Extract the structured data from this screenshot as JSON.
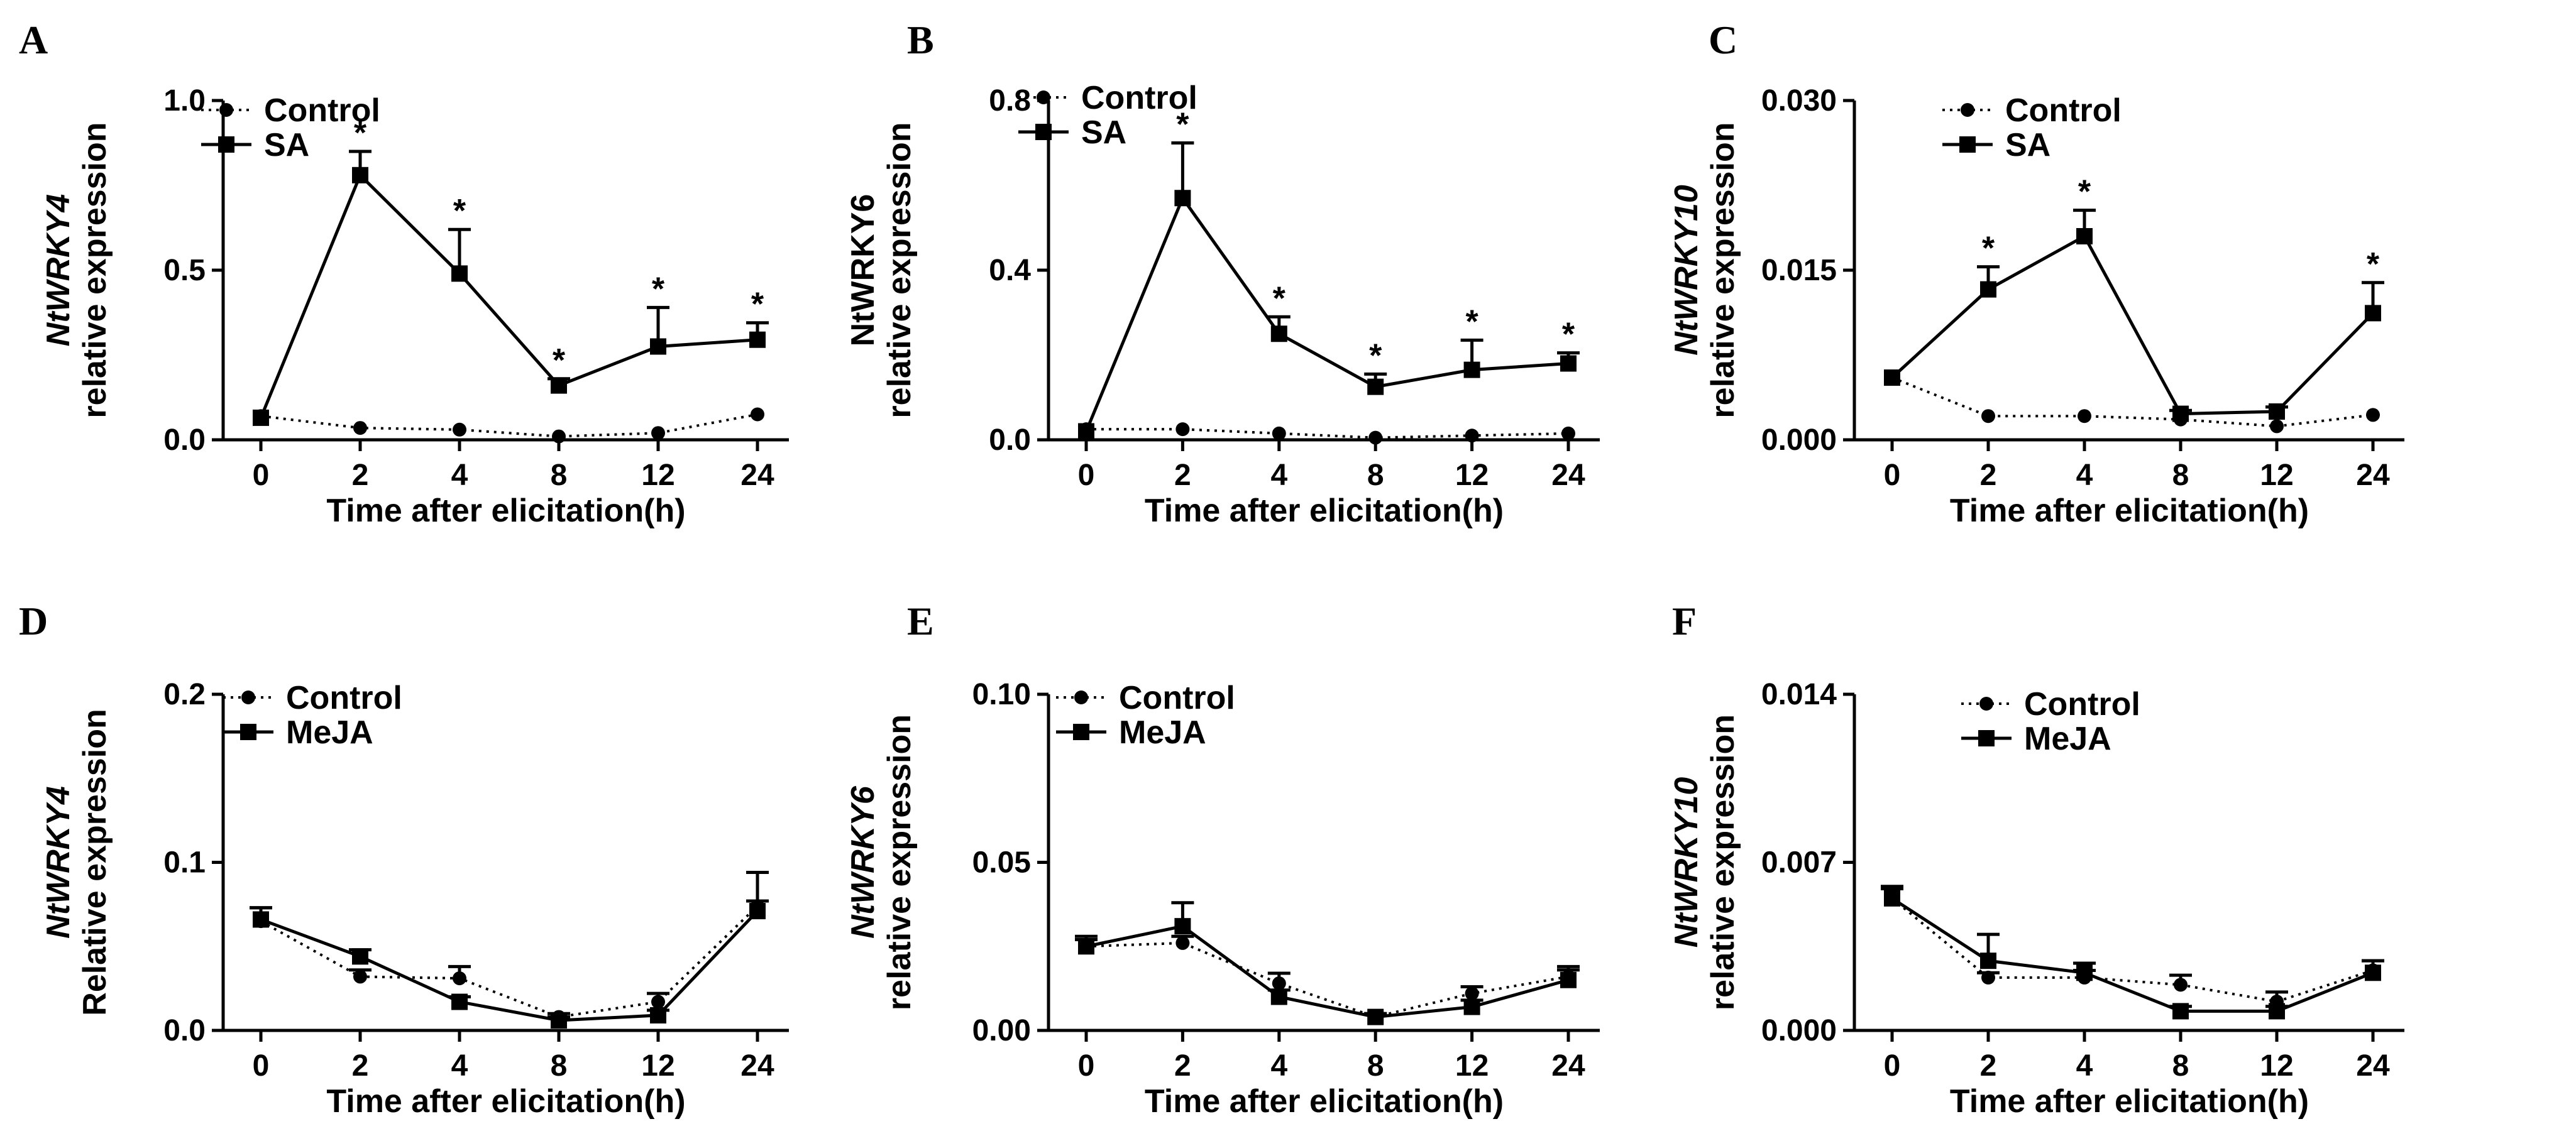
{
  "chart_data": [
    {
      "panel": "A",
      "type": "line",
      "title": "",
      "ylabel_gene": "NtWRKY4",
      "ylabel_gene_italic": true,
      "ylabel_text": "relative expression",
      "xlabel": "Time after elicitation(h)",
      "categories": [
        "0",
        "2",
        "4",
        "8",
        "12",
        "24"
      ],
      "ylim": [
        0,
        1.0
      ],
      "yticks": [
        "0.0",
        "0.5",
        "1.0"
      ],
      "ytick_values": [
        0,
        0.5,
        1.0
      ],
      "series": [
        {
          "name": "Control",
          "style": "dotted",
          "marker": "circle",
          "values": [
            0.07,
            0.035,
            0.03,
            0.01,
            0.02,
            0.075
          ],
          "errors": [
            0,
            0,
            0,
            0,
            0,
            0
          ]
        },
        {
          "name": "SA",
          "style": "solid",
          "marker": "square",
          "values": [
            0.065,
            0.78,
            0.49,
            0.16,
            0.275,
            0.295
          ],
          "errors": [
            0,
            0.07,
            0.13,
            0.02,
            0.115,
            0.05
          ]
        }
      ],
      "significance": [
        "",
        "*",
        "*",
        "*",
        "*",
        "*"
      ]
    },
    {
      "panel": "B",
      "type": "line",
      "title": "",
      "ylabel_gene": "NtWRKY6",
      "ylabel_gene_italic": false,
      "ylabel_text": "relative expression",
      "xlabel": "Time after elicitation(h)",
      "categories": [
        "0",
        "2",
        "4",
        "8",
        "12",
        "24"
      ],
      "ylim": [
        0,
        0.8
      ],
      "yticks": [
        "0.0",
        "0.4",
        "0.8"
      ],
      "ytick_values": [
        0,
        0.4,
        0.8
      ],
      "series": [
        {
          "name": "Control",
          "style": "dotted",
          "marker": "circle",
          "values": [
            0.025,
            0.025,
            0.015,
            0.005,
            0.01,
            0.015
          ],
          "errors": [
            0,
            0,
            0,
            0,
            0,
            0
          ]
        },
        {
          "name": "SA",
          "style": "solid",
          "marker": "square",
          "values": [
            0.02,
            0.57,
            0.25,
            0.125,
            0.165,
            0.18
          ],
          "errors": [
            0,
            0.13,
            0.04,
            0.03,
            0.07,
            0.025
          ]
        }
      ],
      "significance": [
        "",
        "*",
        "*",
        "*",
        "*",
        "*"
      ]
    },
    {
      "panel": "C",
      "type": "line",
      "title": "",
      "ylabel_gene": "NtWRKY10",
      "ylabel_gene_italic": true,
      "ylabel_text": "relative expression",
      "xlabel": "Time after elicitation(h)",
      "categories": [
        "0",
        "2",
        "4",
        "8",
        "12",
        "24"
      ],
      "ylim": [
        0,
        0.03
      ],
      "yticks": [
        "0.000",
        "0.015",
        "0.030"
      ],
      "ytick_values": [
        0,
        0.015,
        0.03
      ],
      "series": [
        {
          "name": "Control",
          "style": "dotted",
          "marker": "circle",
          "values": [
            0.0055,
            0.0021,
            0.0021,
            0.0018,
            0.0012,
            0.0022
          ],
          "errors": [
            0,
            0,
            0,
            0,
            0,
            0
          ]
        },
        {
          "name": "SA",
          "style": "solid",
          "marker": "square",
          "values": [
            0.0055,
            0.0133,
            0.018,
            0.0023,
            0.0025,
            0.0112
          ],
          "errors": [
            0,
            0.002,
            0.0023,
            0.0003,
            0.0004,
            0.0027
          ]
        }
      ],
      "significance": [
        "",
        "*",
        "*",
        "",
        "",
        "*"
      ]
    },
    {
      "panel": "D",
      "type": "line",
      "title": "",
      "ylabel_gene": "NtWRKY4",
      "ylabel_gene_italic": true,
      "ylabel_text": "Relative expression",
      "xlabel": "Time after elicitation(h)",
      "categories": [
        "0",
        "2",
        "4",
        "8",
        "12",
        "24"
      ],
      "ylim": [
        0,
        0.2
      ],
      "yticks": [
        "0.0",
        "0.1",
        "0.2"
      ],
      "ytick_values": [
        0,
        0.1,
        0.2
      ],
      "series": [
        {
          "name": "Control",
          "style": "dotted",
          "marker": "circle",
          "values": [
            0.065,
            0.032,
            0.031,
            0.008,
            0.017,
            0.074
          ],
          "errors": [
            0.008,
            0.004,
            0.007,
            0.002,
            0.005,
            0.02
          ]
        },
        {
          "name": "MeJA",
          "style": "solid",
          "marker": "square",
          "values": [
            0.066,
            0.044,
            0.017,
            0.006,
            0.009,
            0.071
          ],
          "errors": [
            0.007,
            0.004,
            0.003,
            0.002,
            0.003,
            0.006
          ]
        }
      ],
      "significance": [
        "",
        "",
        "",
        "",
        "",
        ""
      ]
    },
    {
      "panel": "E",
      "type": "line",
      "title": "",
      "ylabel_gene": "NtWRKY6",
      "ylabel_gene_italic": true,
      "ylabel_text": "relative expression",
      "xlabel": "Time after elicitation(h)",
      "categories": [
        "0",
        "2",
        "4",
        "8",
        "12",
        "24"
      ],
      "ylim": [
        0,
        0.1
      ],
      "yticks": [
        "0.00",
        "0.05",
        "0.10"
      ],
      "ytick_values": [
        0,
        0.05,
        0.1
      ],
      "series": [
        {
          "name": "Control",
          "style": "dotted",
          "marker": "circle",
          "values": [
            0.025,
            0.026,
            0.014,
            0.004,
            0.011,
            0.016
          ],
          "errors": [
            0.002,
            0.002,
            0.003,
            0.001,
            0.002,
            0.003
          ]
        },
        {
          "name": "MeJA",
          "style": "solid",
          "marker": "square",
          "values": [
            0.025,
            0.031,
            0.01,
            0.004,
            0.007,
            0.015
          ],
          "errors": [
            0.003,
            0.007,
            0.002,
            0.001,
            0.002,
            0.003
          ]
        }
      ],
      "significance": [
        "",
        "",
        "",
        "",
        "",
        ""
      ]
    },
    {
      "panel": "F",
      "type": "line",
      "title": "",
      "ylabel_gene": "NtWRKY10",
      "ylabel_gene_italic": true,
      "ylabel_text": "relative expression",
      "xlabel": "Time after elicitation(h)",
      "categories": [
        "0",
        "2",
        "4",
        "8",
        "12",
        "24"
      ],
      "ylim": [
        0,
        0.014
      ],
      "yticks": [
        "0.000",
        "0.007",
        "0.014"
      ],
      "ytick_values": [
        0,
        0.007,
        0.014
      ],
      "series": [
        {
          "name": "Control",
          "style": "dotted",
          "marker": "circle",
          "values": [
            0.0055,
            0.0022,
            0.0022,
            0.0019,
            0.0012,
            0.0025
          ],
          "errors": [
            0.0005,
            0.0002,
            0.0003,
            0.0004,
            0.0004,
            0.0004
          ]
        },
        {
          "name": "MeJA",
          "style": "solid",
          "marker": "square",
          "values": [
            0.0055,
            0.0029,
            0.0024,
            0.0008,
            0.0008,
            0.0024
          ],
          "errors": [
            0.0004,
            0.0011,
            0.0004,
            0.0002,
            0.0002,
            0.0005
          ]
        }
      ],
      "significance": [
        "",
        "",
        "",
        "",
        "",
        ""
      ]
    }
  ]
}
